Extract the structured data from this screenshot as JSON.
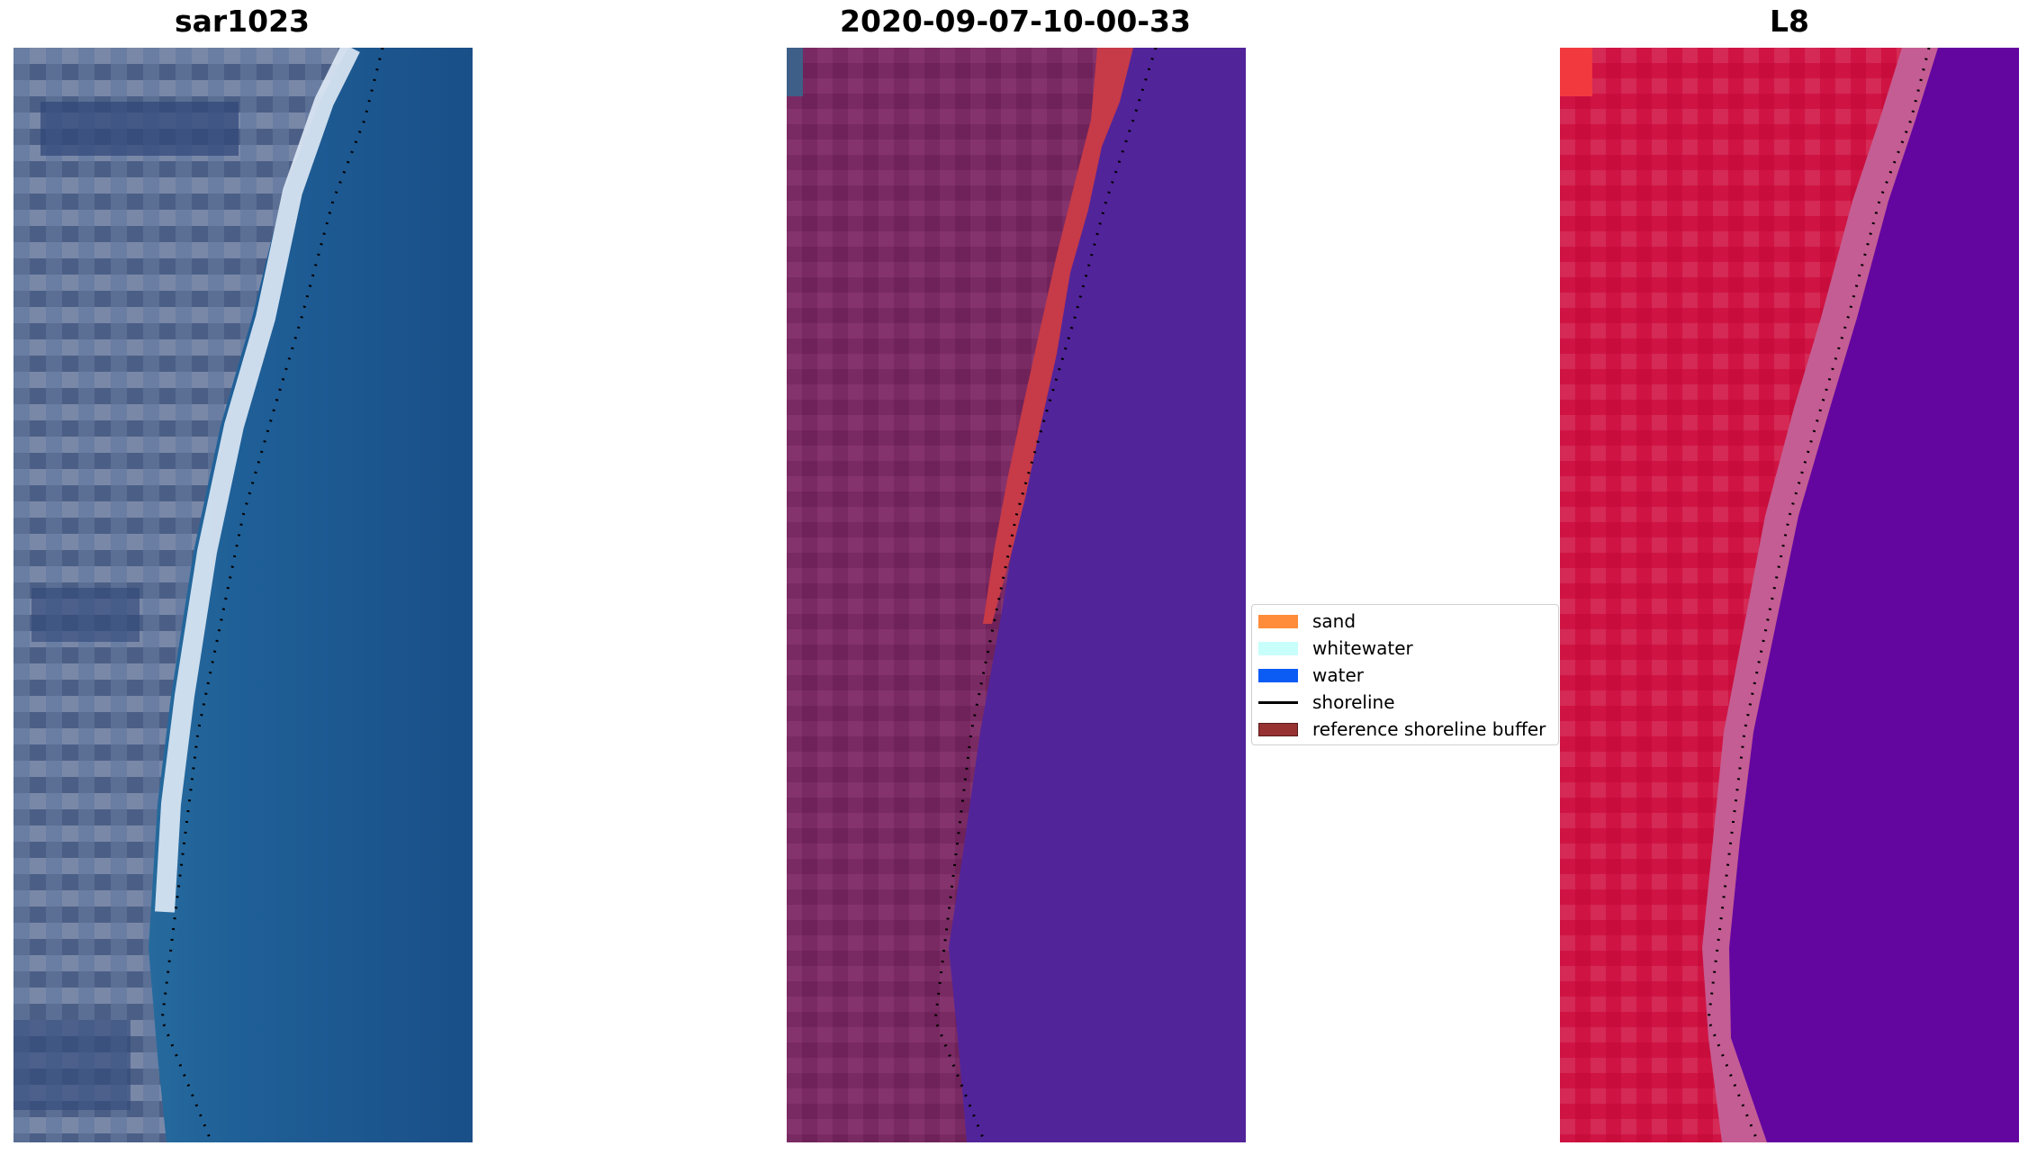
{
  "panels": [
    {
      "title": "sar1023"
    },
    {
      "title": "2020-09-07-10-00-33"
    },
    {
      "title": "L8"
    }
  ],
  "legend": {
    "items": [
      {
        "label": "sand",
        "color": "#ff8c3a",
        "kind": "patch"
      },
      {
        "label": "whitewater",
        "color": "#c8fffb",
        "kind": "patch"
      },
      {
        "label": "water",
        "color": "#0a5cf5",
        "kind": "patch"
      },
      {
        "label": "shoreline",
        "color": "#000000",
        "kind": "line"
      },
      {
        "label": "reference shoreline buffer",
        "color": "#963232",
        "kind": "patch"
      }
    ]
  },
  "colors": {
    "rgb_land": "#5b6f94",
    "rgb_sea": "#1d5a92",
    "rgb_surf": "#dfeaf6",
    "class_land": "#7a2a63",
    "class_water": "#52249a",
    "class_buffer": "#c73a47",
    "nir_land": "#cf1443",
    "nir_sea": "#6306a0",
    "nir_transition": "#c45d93"
  }
}
